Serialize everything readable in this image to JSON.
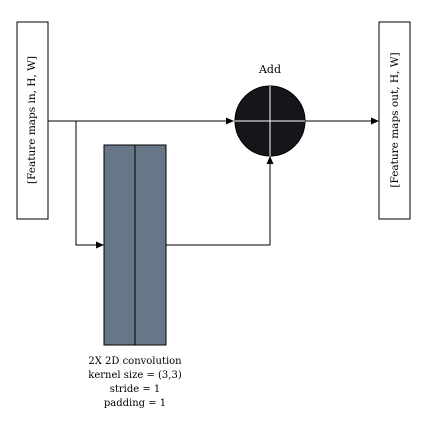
{
  "input_box": {
    "label": "[Feature maps in, H, W]"
  },
  "output_box": {
    "label": "[Feature maps out, H, W]"
  },
  "add_node": {
    "label": "Add"
  },
  "conv_block": {
    "caption_lines": [
      "2X 2D convolution",
      "kernel size = (3,3)",
      "stride = 1",
      "padding = 1"
    ]
  },
  "colors": {
    "conv_fill": "#687788",
    "add_fill": "#17141a",
    "stroke": "#000000",
    "background": "#ffffff"
  }
}
